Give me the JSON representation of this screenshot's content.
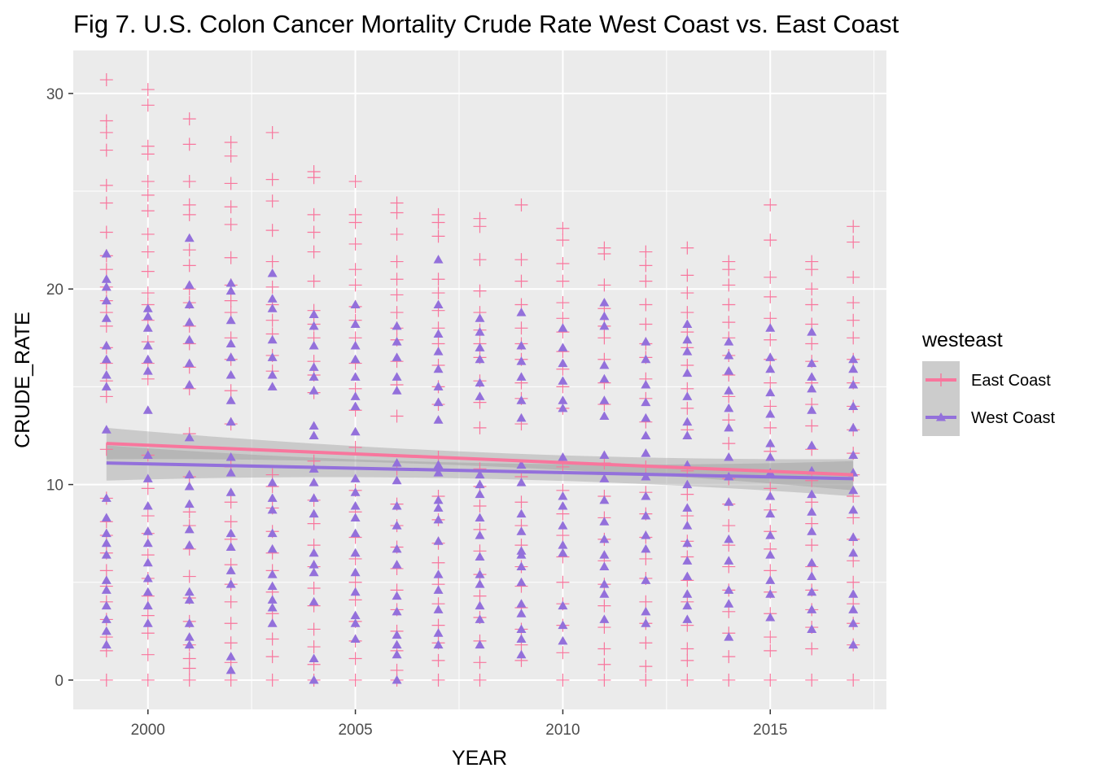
{
  "chart_data": {
    "type": "scatter",
    "title": "Fig 7. U.S. Colon Cancer Mortality Crude Rate West Coast vs. East Coast",
    "xlabel": "YEAR",
    "ylabel": "CRUDE_RATE",
    "xlim": [
      1998.2,
      2017.8
    ],
    "ylim": [
      -1.5,
      32.2
    ],
    "x_ticks": [
      2000,
      2005,
      2010,
      2015
    ],
    "y_ticks": [
      0,
      10,
      20,
      30
    ],
    "grid": true,
    "legend": {
      "title": "westeast",
      "position": "right"
    },
    "panel_color": "#ebebeb",
    "series": [
      {
        "name": "East Coast",
        "color": "#f8769d",
        "marker": "plus",
        "smooth": {
          "method": "lm",
          "start": [
            1999,
            12.1
          ],
          "end": [
            2017,
            10.5
          ],
          "se_halfwidth_ends": 0.8,
          "se_halfwidth_mid": 0.35
        },
        "points": [
          {
            "x": 1999,
            "y": [
              0,
              1.5,
              2.2,
              3.1,
              4.0,
              4.8,
              5.6,
              6.5,
              7.4,
              8.1,
              9.3,
              11.8,
              14.5,
              15.3,
              16.2,
              17.0,
              18.1,
              18.8,
              19.4,
              20.1,
              21.0,
              21.7,
              22.9,
              24.4,
              25.3,
              27.1,
              28.0,
              28.6,
              30.7
            ]
          },
          {
            "x": 2000,
            "y": [
              0,
              1.3,
              2.4,
              3.3,
              4.3,
              5.2,
              6.4,
              7.5,
              8.4,
              9.8,
              11.5,
              15.4,
              16.2,
              17.3,
              18.4,
              19.2,
              19.8,
              20.9,
              21.9,
              22.8,
              24.0,
              24.8,
              25.5,
              26.9,
              27.3,
              29.4,
              30.2
            ]
          },
          {
            "x": 2001,
            "y": [
              0,
              0.6,
              1.1,
              1.8,
              3.0,
              4.2,
              5.3,
              6.7,
              7.9,
              8.6,
              10.4,
              12.6,
              14.9,
              16.0,
              17.2,
              18.1,
              19.3,
              20.0,
              21.2,
              22.0,
              23.8,
              24.3,
              25.5,
              27.4,
              28.7
            ]
          },
          {
            "x": 2002,
            "y": [
              0,
              0.9,
              1.9,
              2.9,
              4.0,
              4.9,
              5.9,
              7.2,
              8.1,
              9.1,
              10.9,
              13.1,
              14.8,
              16.4,
              17.5,
              18.8,
              19.4,
              20.2,
              21.6,
              23.3,
              24.2,
              25.4,
              26.8,
              27.5
            ]
          },
          {
            "x": 2003,
            "y": [
              0,
              1.2,
              2.1,
              3.4,
              4.5,
              5.6,
              6.5,
              7.6,
              8.8,
              9.9,
              10.5,
              15.8,
              16.6,
              17.7,
              18.4,
              19.2,
              20.1,
              21.4,
              23.0,
              24.5,
              25.6,
              28.0
            ]
          },
          {
            "x": 2004,
            "y": [
              0,
              0.8,
              1.7,
              2.6,
              3.8,
              4.7,
              5.8,
              6.9,
              8.0,
              9.2,
              11.2,
              14.7,
              15.6,
              16.3,
              17.5,
              18.2,
              18.9,
              20.4,
              21.9,
              22.9,
              23.8,
              25.7,
              26.0
            ]
          },
          {
            "x": 2005,
            "y": [
              0,
              1.1,
              2.0,
              3.0,
              4.1,
              5.0,
              6.2,
              7.3,
              8.6,
              9.7,
              11.9,
              13.8,
              14.9,
              16.2,
              17.5,
              18.4,
              19.1,
              20.2,
              21.0,
              22.3,
              23.4,
              23.8,
              25.5
            ]
          },
          {
            "x": 2006,
            "y": [
              0,
              0.5,
              1.5,
              2.5,
              3.6,
              4.6,
              5.7,
              6.8,
              7.9,
              9.0,
              10.8,
              13.5,
              15.1,
              16.3,
              17.4,
              18.0,
              18.8,
              19.7,
              20.5,
              21.4,
              22.8,
              23.9,
              24.4
            ]
          },
          {
            "x": 2007,
            "y": [
              0,
              1.0,
              1.9,
              2.8,
              3.9,
              4.9,
              6.0,
              7.0,
              8.2,
              9.4,
              11.4,
              14.1,
              15.0,
              16.1,
              17.2,
              18.0,
              18.9,
              19.8,
              20.5,
              22.7,
              23.4,
              23.8
            ]
          },
          {
            "x": 2008,
            "y": [
              0,
              0.9,
              2.0,
              3.2,
              4.3,
              5.4,
              6.6,
              7.7,
              8.9,
              9.9,
              10.8,
              12.9,
              14.2,
              15.3,
              16.5,
              17.2,
              17.9,
              18.8,
              19.9,
              21.5,
              23.2,
              23.6
            ]
          },
          {
            "x": 2009,
            "y": [
              1.0,
              1.8,
              2.6,
              3.7,
              4.8,
              5.8,
              6.9,
              7.9,
              9.1,
              10.4,
              13.1,
              14.4,
              15.2,
              16.4,
              17.2,
              18.0,
              19.2,
              20.4,
              21.5,
              24.3
            ]
          },
          {
            "x": 2010,
            "y": [
              0,
              1.4,
              2.8,
              3.9,
              5.0,
              6.3,
              7.4,
              8.5,
              9.7,
              10.9,
              13.9,
              15.0,
              15.9,
              16.8,
              17.8,
              18.5,
              19.3,
              20.4,
              21.3,
              22.5,
              23.1
            ]
          },
          {
            "x": 2011,
            "y": [
              0,
              0.8,
              1.6,
              2.7,
              3.8,
              4.9,
              6.1,
              7.2,
              8.3,
              9.4,
              11.1,
              14.1,
              15.2,
              16.4,
              17.5,
              18.1,
              19.0,
              20.2,
              21.8,
              22.1
            ]
          },
          {
            "x": 2012,
            "y": [
              0,
              0.7,
              1.9,
              2.9,
              4.0,
              5.2,
              6.2,
              7.3,
              8.5,
              9.6,
              10.9,
              13.2,
              14.4,
              15.4,
              16.5,
              17.2,
              18.2,
              19.2,
              20.4,
              21.2,
              21.9
            ]
          },
          {
            "x": 2013,
            "y": [
              0,
              1.0,
              1.6,
              2.8,
              4.0,
              5.1,
              6.3,
              7.1,
              8.4,
              9.5,
              10.7,
              12.8,
              13.9,
              14.9,
              16.1,
              17.0,
              17.8,
              18.8,
              19.8,
              20.7,
              22.1
            ]
          },
          {
            "x": 2014,
            "y": [
              0,
              1.2,
              2.4,
              3.5,
              4.6,
              5.8,
              6.9,
              7.9,
              9.0,
              10.3,
              12.1,
              13.3,
              14.5,
              15.6,
              16.6,
              17.5,
              18.3,
              19.2,
              20.2,
              21.0,
              21.4
            ]
          },
          {
            "x": 2015,
            "y": [
              0,
              1.5,
              2.2,
              3.4,
              4.5,
              5.6,
              6.7,
              7.6,
              8.7,
              9.8,
              11.7,
              12.9,
              14.0,
              15.2,
              16.4,
              17.4,
              18.5,
              19.6,
              20.6,
              22.5,
              24.3
            ]
          },
          {
            "x": 2016,
            "y": [
              0,
              1.6,
              2.7,
              3.6,
              4.6,
              5.8,
              6.9,
              8.0,
              9.1,
              10.2,
              11.8,
              13.0,
              14.1,
              15.2,
              16.3,
              17.2,
              18.2,
              19.2,
              20.0,
              21.0,
              21.4
            ]
          },
          {
            "x": 2017,
            "y": [
              0,
              1.8,
              2.9,
              3.9,
              5.0,
              6.1,
              7.2,
              8.3,
              9.4,
              10.5,
              11.6,
              12.8,
              14.0,
              15.2,
              16.4,
              17.5,
              18.4,
              19.3,
              20.6,
              22.4,
              23.2
            ]
          }
        ]
      },
      {
        "name": "West Coast",
        "color": "#9370db",
        "marker": "triangle",
        "smooth": {
          "method": "lm",
          "start": [
            1999,
            11.1
          ],
          "end": [
            2017,
            10.3
          ],
          "se_halfwidth_ends": 0.9,
          "se_halfwidth_mid": 0.4
        },
        "points": [
          {
            "x": 1999,
            "y": [
              1.8,
              2.5,
              3.1,
              3.8,
              4.6,
              5.1,
              6.4,
              7.0,
              7.5,
              8.3,
              9.3,
              12.8,
              15.0,
              15.6,
              16.4,
              17.1,
              18.5,
              19.4,
              20.1,
              20.5,
              21.8
            ]
          },
          {
            "x": 2000,
            "y": [
              2.9,
              3.8,
              4.5,
              5.2,
              6.0,
              7.0,
              7.6,
              8.9,
              10.3,
              11.5,
              13.8,
              15.8,
              16.4,
              17.1,
              18.0,
              18.6,
              19.0
            ]
          },
          {
            "x": 2001,
            "y": [
              1.8,
              2.2,
              2.9,
              4.1,
              4.5,
              6.9,
              7.7,
              9.0,
              9.9,
              10.5,
              12.4,
              15.1,
              16.2,
              17.4,
              18.3,
              19.2,
              20.2,
              22.6
            ]
          },
          {
            "x": 2002,
            "y": [
              0.5,
              1.2,
              4.9,
              5.6,
              6.8,
              7.5,
              9.6,
              10.6,
              11.4,
              13.2,
              14.3,
              15.6,
              16.5,
              17.2,
              18.4,
              19.9,
              20.3
            ]
          },
          {
            "x": 2003,
            "y": [
              2.9,
              3.7,
              4.1,
              4.8,
              5.4,
              6.7,
              7.5,
              8.7,
              9.3,
              10.1,
              15.0,
              15.6,
              16.5,
              17.4,
              19.0,
              19.5,
              20.8
            ]
          },
          {
            "x": 2004,
            "y": [
              0,
              1.1,
              4.0,
              5.5,
              5.9,
              6.5,
              8.5,
              9.3,
              10.1,
              10.8,
              12.5,
              13.0,
              14.8,
              15.5,
              16.0,
              17.1,
              18.1,
              18.7
            ]
          },
          {
            "x": 2005,
            "y": [
              2.1,
              2.9,
              3.3,
              4.5,
              5.5,
              6.5,
              7.5,
              8.3,
              8.9,
              9.6,
              10.3,
              12.7,
              14.0,
              14.5,
              15.5,
              16.4,
              17.1,
              18.2,
              19.2
            ]
          },
          {
            "x": 2006,
            "y": [
              0,
              1.3,
              1.8,
              2.3,
              3.5,
              4.3,
              5.9,
              6.7,
              7.9,
              8.9,
              10.2,
              11.1,
              14.8,
              15.5,
              16.5,
              17.3,
              18.1
            ]
          },
          {
            "x": 2007,
            "y": [
              1.8,
              2.4,
              3.6,
              4.6,
              5.4,
              7.1,
              8.2,
              8.8,
              9.2,
              10.6,
              11.0,
              13.3,
              14.2,
              15.0,
              15.9,
              16.8,
              17.7,
              19.2,
              21.5
            ]
          },
          {
            "x": 2008,
            "y": [
              1.8,
              3.1,
              3.8,
              4.9,
              5.4,
              6.3,
              7.4,
              8.3,
              9.5,
              10.0,
              10.5,
              14.5,
              15.2,
              16.4,
              17.0,
              17.8,
              18.5
            ]
          },
          {
            "x": 2009,
            "y": [
              1.3,
              2.1,
              2.6,
              3.4,
              3.9,
              5.0,
              5.8,
              6.4,
              6.6,
              7.6,
              8.5,
              10.1,
              11.0,
              13.4,
              14.3,
              15.5,
              16.3,
              17.1,
              18.8
            ]
          },
          {
            "x": 2010,
            "y": [
              2.0,
              2.8,
              3.8,
              6.5,
              6.9,
              7.9,
              8.9,
              9.4,
              11.4,
              13.9,
              14.3,
              15.3,
              16.2,
              17.0,
              18.0
            ]
          },
          {
            "x": 2011,
            "y": [
              3.1,
              4.4,
              4.9,
              5.8,
              6.4,
              7.2,
              8.1,
              9.2,
              10.3,
              11.5,
              13.5,
              14.3,
              15.4,
              16.1,
              18.1,
              18.6,
              19.3
            ]
          },
          {
            "x": 2012,
            "y": [
              2.9,
              3.5,
              5.1,
              6.7,
              7.4,
              8.4,
              9.4,
              10.4,
              11.6,
              12.5,
              13.4,
              14.2,
              15.1,
              16.4,
              17.3
            ]
          },
          {
            "x": 2013,
            "y": [
              3.1,
              3.8,
              4.4,
              5.3,
              6.1,
              7.0,
              7.9,
              8.8,
              10.0,
              11.0,
              12.5,
              13.2,
              14.5,
              15.7,
              16.8,
              17.4,
              18.2
            ]
          },
          {
            "x": 2014,
            "y": [
              2.2,
              3.9,
              4.6,
              6.1,
              7.2,
              9.1,
              10.4,
              11.4,
              12.9,
              13.9,
              14.8,
              15.8,
              16.6,
              17.3
            ]
          },
          {
            "x": 2015,
            "y": [
              3.2,
              4.4,
              5.1,
              6.4,
              7.4,
              8.5,
              9.4,
              10.6,
              11.4,
              12.1,
              13.6,
              14.7,
              15.9,
              16.5,
              18.0
            ]
          },
          {
            "x": 2016,
            "y": [
              2.6,
              3.6,
              4.5,
              5.3,
              6.0,
              7.6,
              8.6,
              9.5,
              10.7,
              12.0,
              13.8,
              14.9,
              15.5,
              16.2,
              17.8
            ]
          },
          {
            "x": 2017,
            "y": [
              1.8,
              2.9,
              3.6,
              4.4,
              6.5,
              7.3,
              8.7,
              9.7,
              10.6,
              11.5,
              12.9,
              14.0,
              15.1,
              15.9,
              16.4
            ]
          }
        ]
      }
    ]
  }
}
